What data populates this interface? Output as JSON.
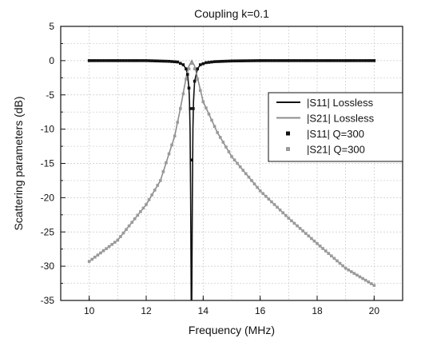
{
  "chart_data": {
    "type": "line",
    "title": "Coupling k=0.1",
    "xlabel": "Frequency (MHz)",
    "ylabel": "Scattering parameters (dB)",
    "xlim": [
      9,
      21
    ],
    "ylim": [
      -35,
      5
    ],
    "xticks": [
      10,
      12,
      14,
      16,
      18,
      20
    ],
    "yticks": [
      5,
      0,
      -5,
      -10,
      -15,
      -20,
      -25,
      -30,
      -35
    ],
    "xtick_labels": [
      "10",
      "12",
      "14",
      "16",
      "18",
      "20"
    ],
    "ytick_labels": [
      "5",
      "0",
      "-5",
      "-10",
      "-15",
      "-20",
      "-25",
      "-30",
      "-35"
    ],
    "grid": true,
    "legend_position": "right",
    "series": [
      {
        "name": "|S11| Lossless",
        "style": "line",
        "color": "#111111",
        "x": [
          10,
          12,
          12.8,
          13.1,
          13.3,
          13.4,
          13.45,
          13.5,
          13.52,
          13.54,
          13.56,
          13.58,
          13.6,
          13.62,
          13.64,
          13.66,
          13.7,
          13.8,
          13.9,
          14.1,
          14.4,
          15,
          16,
          18,
          20
        ],
        "y": [
          0,
          0,
          -0.1,
          -0.2,
          -0.6,
          -1.2,
          -2,
          -4,
          -6,
          -10,
          -20,
          -35,
          -35,
          -20,
          -10,
          -6,
          -3,
          -1.2,
          -0.6,
          -0.3,
          -0.15,
          -0.05,
          0,
          0,
          0
        ]
      },
      {
        "name": "|S21| Lossless",
        "style": "line",
        "color": "#8c8c8c",
        "x": [
          10,
          11,
          12,
          12.5,
          13,
          13.2,
          13.4,
          13.5,
          13.6,
          13.7,
          13.8,
          14,
          14.5,
          15,
          16,
          17,
          18,
          19,
          20
        ],
        "y": [
          -29.3,
          -26.2,
          -21,
          -17.5,
          -11,
          -7,
          -2.5,
          -0.8,
          0,
          -0.8,
          -2.5,
          -6,
          -10.5,
          -14,
          -19,
          -23,
          -26.7,
          -30.3,
          -32.8
        ]
      },
      {
        "name": "|S11| Q=300",
        "style": "markers",
        "color": "#111111",
        "marker": "square",
        "x": [
          10,
          12,
          12.8,
          13.1,
          13.3,
          13.4,
          13.45,
          13.5,
          13.55,
          13.6,
          13.65,
          13.7,
          13.8,
          13.9,
          14.1,
          14.4,
          15,
          16,
          18,
          20
        ],
        "y": [
          0,
          0,
          -0.1,
          -0.2,
          -0.6,
          -1.2,
          -2,
          -4,
          -7,
          -14.5,
          -7,
          -3,
          -1.2,
          -0.6,
          -0.3,
          -0.15,
          -0.05,
          0,
          0,
          0
        ]
      },
      {
        "name": "|S21| Q=300",
        "style": "markers",
        "color": "#9a9a9a",
        "marker": "square",
        "x": [
          10,
          11,
          12,
          12.5,
          13,
          13.2,
          13.4,
          13.5,
          13.6,
          13.7,
          13.8,
          14,
          14.5,
          15,
          16,
          17,
          18,
          19,
          20
        ],
        "y": [
          -29.3,
          -26.2,
          -21,
          -17.5,
          -11,
          -7,
          -2.7,
          -1.2,
          -0.4,
          -1.2,
          -2.7,
          -6,
          -10.5,
          -14,
          -19,
          -23,
          -26.7,
          -30.3,
          -32.8
        ]
      }
    ]
  }
}
